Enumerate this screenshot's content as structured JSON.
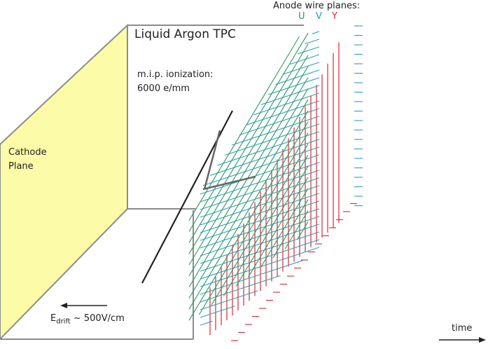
{
  "labels": {
    "title": "Liquid Argon TPC",
    "mip_line1": "m.i.p. ionization:",
    "mip_line2": "6000 e/mm",
    "cathode_line1": "Cathode",
    "cathode_line2": "Plane",
    "anode": "Anode wire planes:",
    "u": "U",
    "v": "V",
    "y": "Y",
    "edrift_main": "E",
    "edrift_sub": "drift",
    "edrift_rest": " ~ 500V/cm",
    "time": "time"
  },
  "colors": {
    "u_plane": "#2e9a5a",
    "v_plane": "#2a9fc0",
    "y_plane": "#e0252d",
    "cathode_fill": "#fbfba8",
    "box_edge": "#8c8c8c",
    "track": "#222222"
  }
}
